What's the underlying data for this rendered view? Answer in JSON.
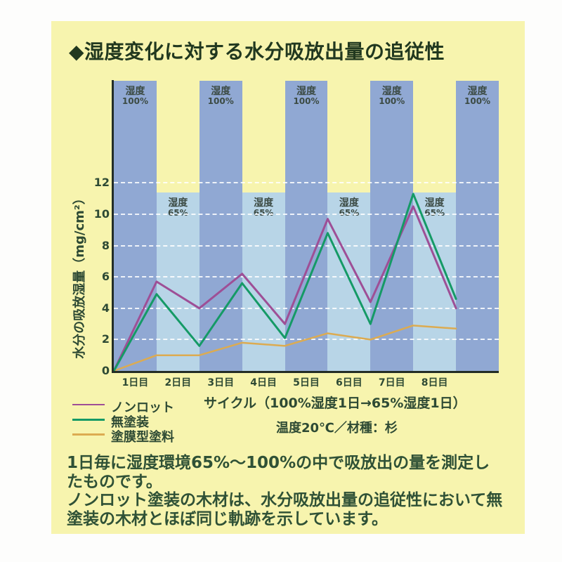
{
  "page": {
    "card_background": "#f7f4ae",
    "outer_background": "#fdfdfc"
  },
  "chart_data": {
    "type": "line",
    "title": "◆湿度変化に対する水分吸放出量の追従性",
    "ylabel": "水分の吸放湿量（mg/cm²）",
    "xlabel": "サイクル（100%湿度1日→65%湿度1日）",
    "cycle_caption": "サイクル（100%湿度1日→65%湿度1日）",
    "condition_caption": "温度20℃／材種：杉",
    "yticks": [
      0,
      2,
      4,
      6,
      8,
      10,
      12
    ],
    "ylim": [
      0,
      18.5
    ],
    "grid": "dashed horizontal at each ytick",
    "legend_position": "below-left",
    "x_days": [
      0,
      1,
      2,
      3,
      4,
      5,
      6,
      7,
      8
    ],
    "day_labels": [
      "1日目",
      "2日目",
      "3日目",
      "4日目",
      "5日目",
      "6日目",
      "7日目",
      "8日目"
    ],
    "band_label_word": "湿度",
    "band_65_top_value": 11.4,
    "bands": [
      {
        "humidity": "100%"
      },
      {
        "humidity": "65%"
      },
      {
        "humidity": "100%"
      },
      {
        "humidity": "65%"
      },
      {
        "humidity": "100%"
      },
      {
        "humidity": "65%"
      },
      {
        "humidity": "100%"
      },
      {
        "humidity": "65%"
      },
      {
        "humidity": "100%"
      }
    ],
    "series": [
      {
        "name": "ノンロット",
        "color": "#9e4f96",
        "width": 3,
        "values": [
          0,
          5.7,
          4.0,
          6.2,
          3.0,
          9.7,
          4.4,
          10.5,
          4.0
        ]
      },
      {
        "name": "無塗装",
        "color": "#159a66",
        "width": 3,
        "values": [
          0,
          4.9,
          1.6,
          5.6,
          2.1,
          8.8,
          3.0,
          11.3,
          4.6
        ]
      },
      {
        "name": "塗膜型塗料",
        "color": "#dcab51",
        "width": 2.5,
        "values": [
          0,
          1.0,
          1.0,
          1.8,
          1.6,
          2.4,
          2.0,
          2.9,
          2.7
        ]
      }
    ],
    "colors": {
      "band_100": "#90a8d3",
      "band_65": "#b8d5e7",
      "axis": "#232d26",
      "title_text": "#21381f",
      "label_text": "#2e4a34",
      "band_label_text": "#3c4b44",
      "body_text": "#2f5136"
    }
  },
  "legend": {
    "items": [
      {
        "label": "ノンロット",
        "color": "#9e4f96",
        "thickness": 2
      },
      {
        "label": "無塗装",
        "color": "#159a66",
        "thickness": 3
      },
      {
        "label": "塗膜型塗料",
        "color": "#dcab51",
        "thickness": 3
      }
    ]
  },
  "footer": {
    "paragraph1": "1日毎に湿度環境65%～100%の中で吸放出の量を測定したものです。",
    "paragraph2": "ノンロット塗装の木材は、水分吸放出量の追従性において無塗装の木材とほぼ同じ軌跡を示しています。"
  }
}
